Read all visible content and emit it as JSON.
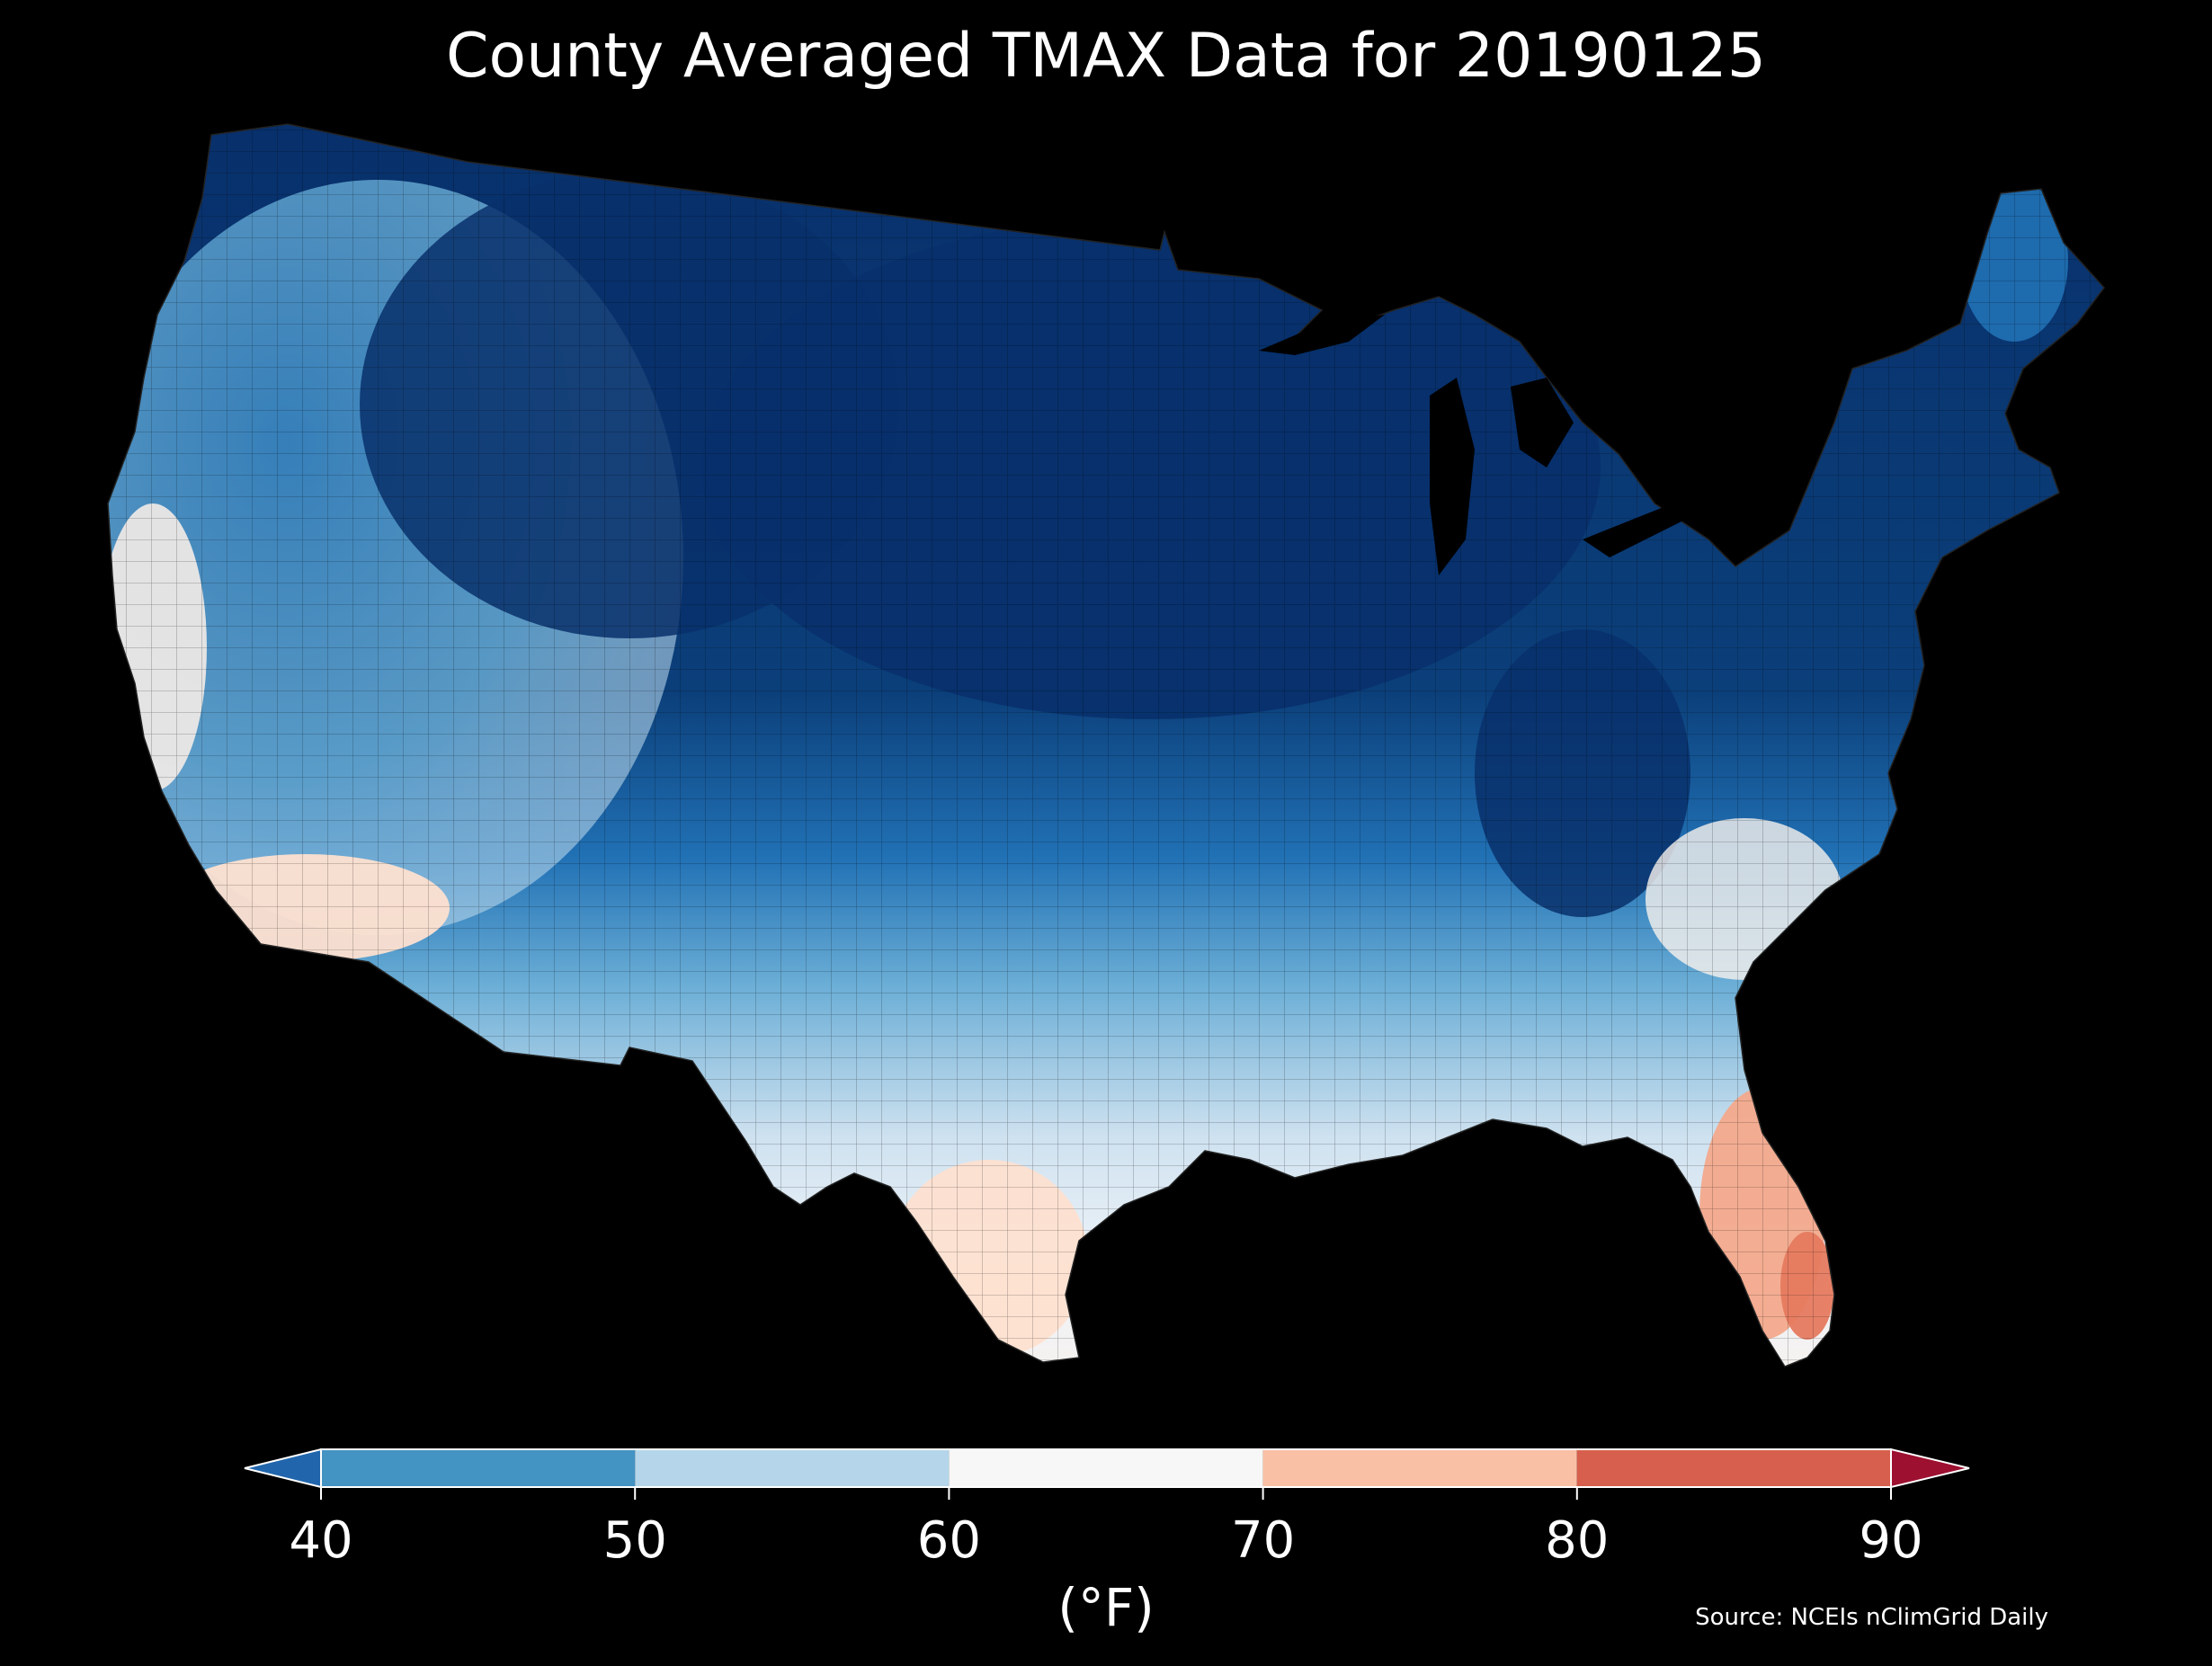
{
  "title": "County Averaged TMAX Data for 20190125",
  "map": {
    "region": "Contiguous United States",
    "variable": "TMAX",
    "color_stops": [
      {
        "value": 30,
        "color": "#08306b"
      },
      {
        "value": 36,
        "color": "#08519c"
      },
      {
        "value": 40,
        "color": "#2171b5"
      },
      {
        "value": 45,
        "color": "#4292c6"
      },
      {
        "value": 50,
        "color": "#6baed6"
      },
      {
        "value": 55,
        "color": "#b5d6ea"
      },
      {
        "value": 60,
        "color": "#e2edf6"
      },
      {
        "value": 65,
        "color": "#f7f7f7"
      },
      {
        "value": 70,
        "color": "#fde0d0"
      },
      {
        "value": 75,
        "color": "#f9c0a6"
      },
      {
        "value": 80,
        "color": "#ef8a6c"
      },
      {
        "value": 85,
        "color": "#d6604d"
      }
    ],
    "regional_values": [
      {
        "region": "Pacific Northwest coast",
        "tmax": 46
      },
      {
        "region": "Northern Rockies / High Plains",
        "tmax": 34
      },
      {
        "region": "Upper Midwest / Great Lakes",
        "tmax": 30
      },
      {
        "region": "Central Plains",
        "tmax": 38
      },
      {
        "region": "Ohio Valley / Appalachians",
        "tmax": 36
      },
      {
        "region": "Maine",
        "tmax": 40
      },
      {
        "region": "Southern Plains",
        "tmax": 55
      },
      {
        "region": "Gulf Coast",
        "tmax": 60
      },
      {
        "region": "Southern California coast",
        "tmax": 70
      },
      {
        "region": "South Texas",
        "tmax": 70
      },
      {
        "region": "Southeast Atlantic coast",
        "tmax": 66
      },
      {
        "region": "South Florida",
        "tmax": 80
      }
    ]
  },
  "colorbar": {
    "ticks": [
      "40",
      "50",
      "60",
      "70",
      "80",
      "90"
    ],
    "bins": [
      {
        "from": 40,
        "to": 50,
        "color": "#4393c3"
      },
      {
        "from": 50,
        "to": 60,
        "color": "#b5d6ea"
      },
      {
        "from": 60,
        "to": 70,
        "color": "#f7f7f7"
      },
      {
        "from": 70,
        "to": 80,
        "color": "#f9c0a6"
      },
      {
        "from": 80,
        "to": 90,
        "color": "#d6604d"
      }
    ],
    "under_color": "#2166ac",
    "over_color": "#9d1030",
    "extend": "both"
  },
  "unit_label": "(°F)",
  "source": "Source: NCEIs nClimGrid Daily"
}
